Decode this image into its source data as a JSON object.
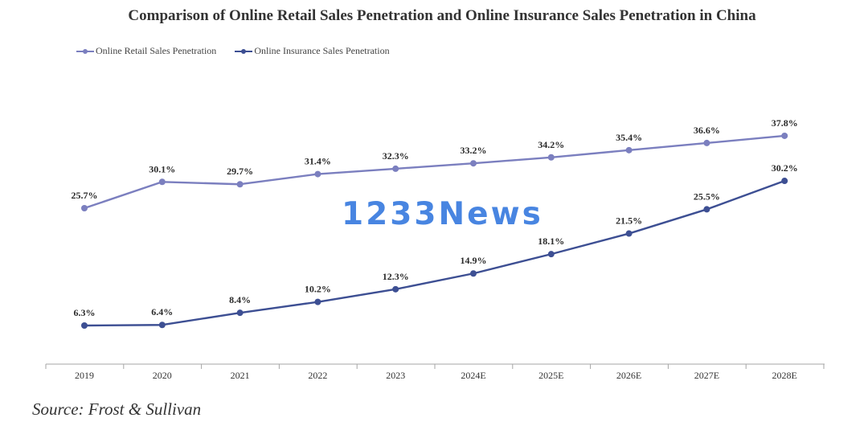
{
  "title": "Comparison of Online Retail Sales Penetration and Online Insurance Sales Penetration in China",
  "source": "Source: Frost & Sullivan",
  "watermark": "1233News",
  "chart_data": {
    "type": "line",
    "title": "Comparison of Online Retail Sales Penetration and Online Insurance Sales Penetration in China",
    "x": [
      "2019",
      "2020",
      "2021",
      "2022",
      "2023",
      "2024E",
      "2025E",
      "2026E",
      "2027E",
      "2028E"
    ],
    "series": [
      {
        "name": "Online Retail Sales Penetration",
        "color": "#7b7fbf",
        "values": [
          25.7,
          30.1,
          29.7,
          31.4,
          32.3,
          33.2,
          34.2,
          35.4,
          36.6,
          37.8
        ],
        "labels": [
          "25.7%",
          "30.1%",
          "29.7%",
          "31.4%",
          "32.3%",
          "33.2%",
          "34.2%",
          "35.4%",
          "36.6%",
          "37.8%"
        ]
      },
      {
        "name": "Online Insurance Sales Penetration",
        "color": "#3d4f93",
        "values": [
          6.3,
          6.4,
          8.4,
          10.2,
          12.3,
          14.9,
          18.1,
          21.5,
          25.5,
          30.2
        ],
        "labels": [
          "6.3%",
          "6.4%",
          "8.4%",
          "10.2%",
          "12.3%",
          "14.9%",
          "18.1%",
          "21.5%",
          "25.5%",
          "30.2%"
        ]
      }
    ],
    "legend_position": "top-left",
    "grid": false
  }
}
